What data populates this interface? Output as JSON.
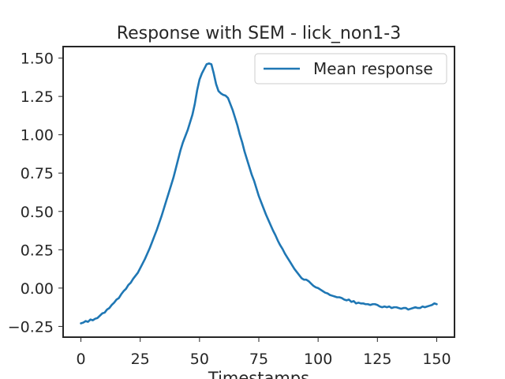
{
  "chart_data": {
    "type": "line",
    "title": "Response with SEM - lick_non1-3",
    "xlabel": "Timestamps",
    "ylabel": "",
    "xlim": [
      -7.5,
      157.5
    ],
    "ylim": [
      -0.32,
      1.575
    ],
    "xticks": [
      0,
      25,
      50,
      75,
      100,
      125,
      150
    ],
    "yticks": [
      -0.25,
      0.0,
      0.25,
      0.5,
      0.75,
      1.0,
      1.25,
      1.5
    ],
    "ytick_labels": [
      "−0.25",
      "0.00",
      "0.25",
      "0.50",
      "0.75",
      "1.00",
      "1.25",
      "1.50"
    ],
    "grid": false,
    "legend_position": "top-right",
    "series_color": "#1f77b4",
    "series": [
      {
        "name": "Mean response",
        "x": [
          0,
          1,
          2,
          3,
          4,
          5,
          6,
          7,
          8,
          9,
          10,
          11,
          12,
          13,
          14,
          15,
          16,
          17,
          18,
          19,
          20,
          21,
          22,
          23,
          24,
          25,
          26,
          27,
          28,
          29,
          30,
          31,
          32,
          33,
          34,
          35,
          36,
          37,
          38,
          39,
          40,
          41,
          42,
          43,
          44,
          45,
          46,
          47,
          48,
          49,
          50,
          51,
          52,
          53,
          54,
          55,
          56,
          57,
          58,
          59,
          60,
          61,
          62,
          63,
          64,
          65,
          66,
          67,
          68,
          69,
          70,
          71,
          72,
          73,
          74,
          75,
          76,
          77,
          78,
          79,
          80,
          81,
          82,
          83,
          84,
          85,
          86,
          87,
          88,
          89,
          90,
          91,
          92,
          93,
          94,
          95,
          96,
          97,
          98,
          99,
          100,
          101,
          102,
          103,
          104,
          105,
          106,
          107,
          108,
          109,
          110,
          111,
          112,
          113,
          114,
          115,
          116,
          117,
          118,
          119,
          120,
          121,
          122,
          123,
          124,
          125,
          126,
          127,
          128,
          129,
          130,
          131,
          132,
          133,
          134,
          135,
          136,
          137,
          138,
          139,
          140,
          141,
          142,
          143,
          144,
          145,
          146,
          147,
          148,
          149,
          150
        ],
        "values": [
          -0.23,
          -0.225,
          -0.215,
          -0.22,
          -0.205,
          -0.21,
          -0.2,
          -0.195,
          -0.18,
          -0.165,
          -0.16,
          -0.14,
          -0.13,
          -0.11,
          -0.095,
          -0.075,
          -0.065,
          -0.04,
          -0.02,
          -0.005,
          0.02,
          0.035,
          0.06,
          0.08,
          0.1,
          0.13,
          0.16,
          0.19,
          0.225,
          0.26,
          0.3,
          0.34,
          0.38,
          0.425,
          0.47,
          0.52,
          0.57,
          0.62,
          0.67,
          0.72,
          0.78,
          0.84,
          0.9,
          0.95,
          0.99,
          1.03,
          1.08,
          1.13,
          1.2,
          1.29,
          1.36,
          1.4,
          1.43,
          1.46,
          1.465,
          1.46,
          1.4,
          1.33,
          1.285,
          1.27,
          1.26,
          1.255,
          1.24,
          1.2,
          1.16,
          1.11,
          1.06,
          1.0,
          0.95,
          0.89,
          0.84,
          0.79,
          0.74,
          0.7,
          0.65,
          0.6,
          0.56,
          0.52,
          0.48,
          0.445,
          0.41,
          0.375,
          0.345,
          0.31,
          0.28,
          0.255,
          0.225,
          0.2,
          0.175,
          0.15,
          0.125,
          0.105,
          0.085,
          0.065,
          0.055,
          0.055,
          0.045,
          0.03,
          0.015,
          0.005,
          0.0,
          -0.01,
          -0.02,
          -0.03,
          -0.035,
          -0.045,
          -0.05,
          -0.055,
          -0.06,
          -0.06,
          -0.065,
          -0.075,
          -0.08,
          -0.075,
          -0.09,
          -0.085,
          -0.1,
          -0.095,
          -0.1,
          -0.1,
          -0.105,
          -0.105,
          -0.11,
          -0.105,
          -0.105,
          -0.11,
          -0.12,
          -0.125,
          -0.12,
          -0.125,
          -0.12,
          -0.13,
          -0.125,
          -0.125,
          -0.13,
          -0.135,
          -0.13,
          -0.13,
          -0.14,
          -0.135,
          -0.13,
          -0.125,
          -0.13,
          -0.13,
          -0.12,
          -0.125,
          -0.12,
          -0.115,
          -0.11,
          -0.1,
          -0.105
        ]
      }
    ]
  }
}
